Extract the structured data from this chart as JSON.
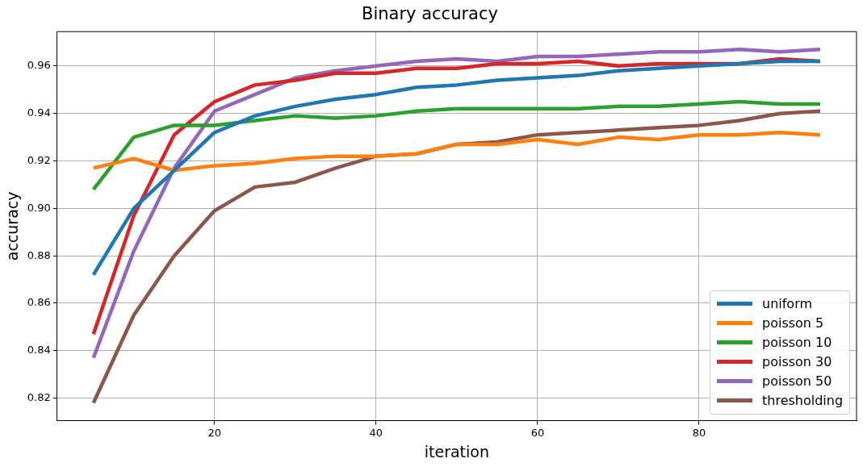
{
  "chart_data": {
    "type": "line",
    "title": "Binary accuracy",
    "xlabel": "iteration",
    "ylabel": "accuracy",
    "x": [
      5,
      10,
      15,
      20,
      25,
      30,
      35,
      40,
      45,
      50,
      55,
      60,
      65,
      70,
      75,
      80,
      85,
      90,
      95
    ],
    "xlim": [
      0.5,
      99.5
    ],
    "xticks": [
      20,
      40,
      60,
      80
    ],
    "ylim": [
      0.8105,
      0.9745
    ],
    "yticks": [
      0.82,
      0.84,
      0.86,
      0.88,
      {
        "value": 0.9,
        "label": "0.90"
      },
      0.92,
      0.94,
      0.96
    ],
    "grid": true,
    "legend": "bottom right",
    "marker": "none",
    "line_style": "solid",
    "series": [
      {
        "name": "uniform",
        "color": "#1f77b4",
        "values": [
          0.872,
          0.9,
          0.916,
          0.932,
          0.939,
          0.943,
          0.946,
          0.948,
          0.951,
          0.952,
          0.954,
          0.955,
          0.956,
          0.958,
          0.959,
          0.96,
          0.961,
          0.962,
          0.962
        ]
      },
      {
        "name": "poisson 5",
        "color": "#ff7f0e",
        "values": [
          0.917,
          0.921,
          0.916,
          0.918,
          0.919,
          0.921,
          0.922,
          0.922,
          0.923,
          0.927,
          0.927,
          0.929,
          0.927,
          0.93,
          0.929,
          0.931,
          0.931,
          0.932,
          0.931
        ]
      },
      {
        "name": "poisson 10",
        "color": "#2ca02c",
        "values": [
          0.908,
          0.93,
          0.935,
          0.935,
          0.937,
          0.939,
          0.938,
          0.939,
          0.941,
          0.942,
          0.942,
          0.942,
          0.942,
          0.943,
          0.943,
          0.944,
          0.945,
          0.944,
          0.944
        ]
      },
      {
        "name": "poisson 30",
        "color": "#d62728",
        "values": [
          0.847,
          0.897,
          0.931,
          0.945,
          0.952,
          0.954,
          0.957,
          0.957,
          0.959,
          0.959,
          0.961,
          0.961,
          0.962,
          0.96,
          0.961,
          0.961,
          0.961,
          0.963,
          0.962
        ]
      },
      {
        "name": "poisson 50",
        "color": "#9467bd",
        "values": [
          0.837,
          0.882,
          0.917,
          0.941,
          0.948,
          0.955,
          0.958,
          0.96,
          0.962,
          0.963,
          0.962,
          0.964,
          0.964,
          0.965,
          0.966,
          0.966,
          0.967,
          0.966,
          0.967
        ]
      },
      {
        "name": "thresholding",
        "color": "#8c564b",
        "values": [
          0.818,
          0.855,
          0.88,
          0.899,
          0.909,
          0.911,
          0.917,
          0.922,
          0.923,
          0.927,
          0.928,
          0.931,
          0.932,
          0.933,
          0.934,
          0.935,
          0.937,
          0.94,
          0.941
        ]
      }
    ]
  }
}
